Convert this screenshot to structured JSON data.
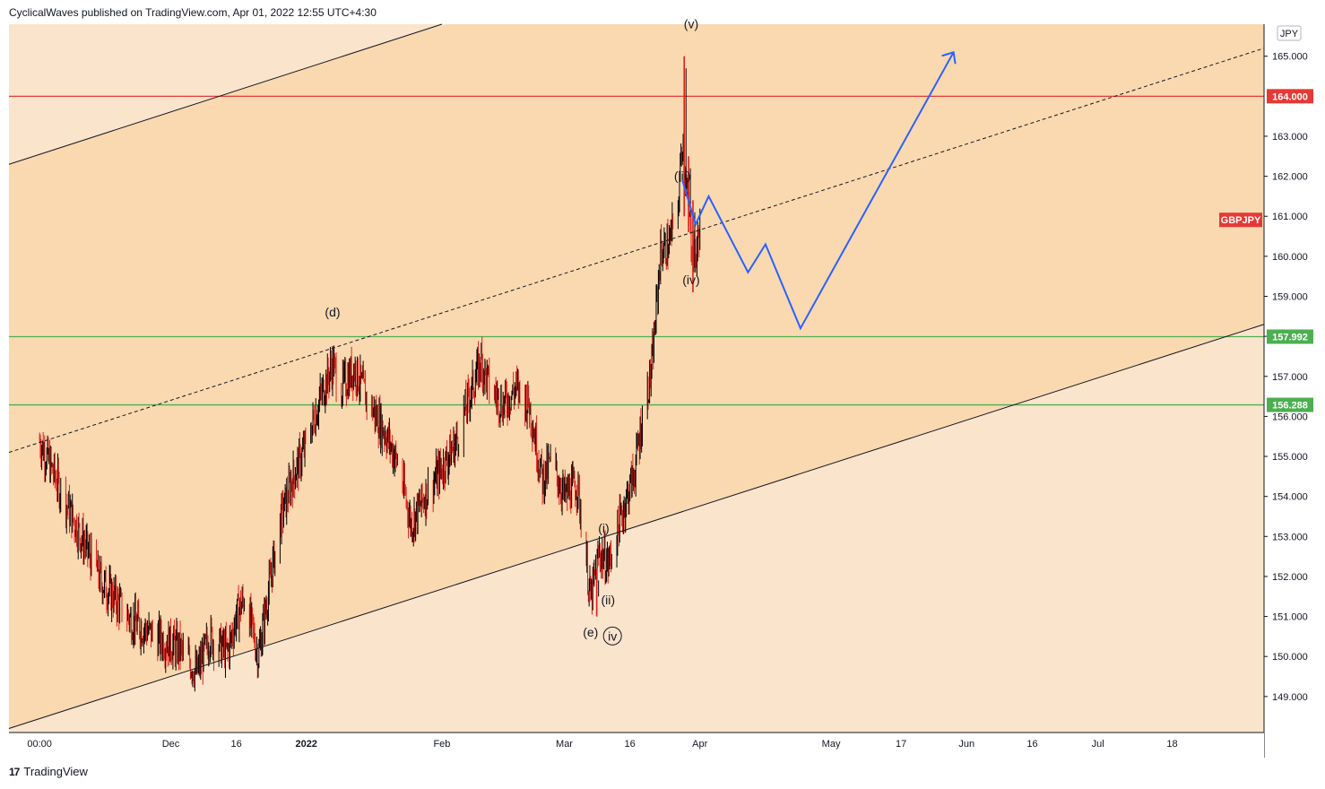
{
  "header": {
    "published": "CyclicalWaves published on TradingView.com, Apr 01, 2022 12:55 UTC+4:30"
  },
  "footer": {
    "brand": "TradingView",
    "logo_glyph": "17"
  },
  "chart_data": {
    "type": "candlestick",
    "symbol": "GBPJPY",
    "currency": "JPY",
    "colors": {
      "up": "#000000",
      "down": "#e0201b",
      "band": "#fad9b0",
      "outer": "#fbe4cc",
      "resistance": "#e53935",
      "support": "#4caf50",
      "projection": "#2962ff"
    },
    "ylim": [
      148.1,
      165.8
    ],
    "y_ticks": [
      "149.000",
      "150.000",
      "151.000",
      "152.000",
      "153.000",
      "154.000",
      "155.000",
      "156.000",
      "157.000",
      "158.000",
      "159.000",
      "160.000",
      "161.000",
      "162.000",
      "163.000",
      "165.000"
    ],
    "x_labels": [
      "00:00",
      "Dec",
      "16",
      "2022",
      "Feb",
      "Mar",
      "16",
      "Apr",
      "May",
      "17",
      "Jun",
      "16",
      "Jul",
      "18"
    ],
    "price_levels": [
      {
        "label": "164.000",
        "value": 164.0,
        "color": "#e53935"
      },
      {
        "label": "157.992",
        "value": 157.992,
        "color": "#4caf50"
      },
      {
        "label": "156.288",
        "value": 156.288,
        "color": "#4caf50"
      }
    ],
    "symbol_tag": {
      "label": "GBPJPY",
      "value": 161.0
    },
    "wave_labels": [
      {
        "text": "(d)",
        "date": "2022-01-07",
        "price": 158.5
      },
      {
        "text": "(v)",
        "date": "2022-03-30",
        "price": 165.7
      },
      {
        "text": "(iii)",
        "date": "2022-03-28",
        "price": 161.9
      },
      {
        "text": "(iv)",
        "date": "2022-03-30",
        "price": 159.3
      },
      {
        "text": "(i)",
        "date": "2022-03-10",
        "price": 153.1
      },
      {
        "text": "(ii)",
        "date": "2022-03-11",
        "price": 151.3
      },
      {
        "text": "(e)",
        "date": "2022-03-07",
        "price": 150.5
      },
      {
        "text": "iv",
        "date": "2022-03-12",
        "price": 150.4,
        "circled": true
      }
    ],
    "anchors": [
      {
        "date": "2021-11-01",
        "price": 155.4
      },
      {
        "date": "2021-11-08",
        "price": 153.6
      },
      {
        "date": "2021-11-15",
        "price": 151.9
      },
      {
        "date": "2021-11-22",
        "price": 150.9
      },
      {
        "date": "2021-11-29",
        "price": 150.4
      },
      {
        "date": "2021-12-03",
        "price": 150.2
      },
      {
        "date": "2021-12-07",
        "price": 149.6
      },
      {
        "date": "2021-12-10",
        "price": 150.5
      },
      {
        "date": "2021-12-14",
        "price": 150.1
      },
      {
        "date": "2021-12-16",
        "price": 151.0
      },
      {
        "date": "2021-12-18",
        "price": 151.5
      },
      {
        "date": "2021-12-21",
        "price": 150.0
      },
      {
        "date": "2021-12-23",
        "price": 151.4
      },
      {
        "date": "2021-12-26",
        "price": 153.4
      },
      {
        "date": "2021-12-29",
        "price": 154.5
      },
      {
        "date": "2022-01-01",
        "price": 155.3
      },
      {
        "date": "2022-01-04",
        "price": 156.4
      },
      {
        "date": "2022-01-07",
        "price": 157.3
      },
      {
        "date": "2022-01-09",
        "price": 156.7
      },
      {
        "date": "2022-01-12",
        "price": 157.2
      },
      {
        "date": "2022-01-15",
        "price": 156.4
      },
      {
        "date": "2022-01-19",
        "price": 155.6
      },
      {
        "date": "2022-01-22",
        "price": 154.8
      },
      {
        "date": "2022-01-25",
        "price": 153.3
      },
      {
        "date": "2022-01-28",
        "price": 154.0
      },
      {
        "date": "2022-02-01",
        "price": 154.7
      },
      {
        "date": "2022-02-04",
        "price": 155.3
      },
      {
        "date": "2022-02-07",
        "price": 156.4
      },
      {
        "date": "2022-02-10",
        "price": 157.4
      },
      {
        "date": "2022-02-12",
        "price": 156.7
      },
      {
        "date": "2022-02-15",
        "price": 156.3
      },
      {
        "date": "2022-02-18",
        "price": 156.7
      },
      {
        "date": "2022-02-21",
        "price": 156.3
      },
      {
        "date": "2022-02-24",
        "price": 154.4
      },
      {
        "date": "2022-02-26",
        "price": 154.9
      },
      {
        "date": "2022-03-01",
        "price": 154.0
      },
      {
        "date": "2022-03-04",
        "price": 154.3
      },
      {
        "date": "2022-03-07",
        "price": 151.4
      },
      {
        "date": "2022-03-09",
        "price": 152.6
      },
      {
        "date": "2022-03-11",
        "price": 152.3
      },
      {
        "date": "2022-03-14",
        "price": 153.5
      },
      {
        "date": "2022-03-17",
        "price": 154.6
      },
      {
        "date": "2022-03-19",
        "price": 156.1
      },
      {
        "date": "2022-03-21",
        "price": 157.2
      },
      {
        "date": "2022-03-23",
        "price": 160.1
      },
      {
        "date": "2022-03-25",
        "price": 160.3
      },
      {
        "date": "2022-03-27",
        "price": 161.3
      },
      {
        "date": "2022-03-28",
        "price": 163.0
      },
      {
        "date": "2022-03-29",
        "price": 161.6
      },
      {
        "date": "2022-03-30",
        "price": 160.4
      },
      {
        "date": "2022-03-31",
        "price": 159.9
      },
      {
        "date": "2022-04-01",
        "price": 160.8
      }
    ],
    "spikes": [
      {
        "date": "2022-03-28",
        "high": 165.0,
        "low": 161.0
      },
      {
        "date": "2022-03-29",
        "high": 162.5,
        "low": 160.6
      },
      {
        "date": "2022-03-30",
        "high": 161.4,
        "low": 159.1
      },
      {
        "date": "2022-03-08",
        "high": 152.2,
        "low": 151.0
      }
    ],
    "projection_path": [
      {
        "date": "2022-03-28",
        "price": 161.9
      },
      {
        "date": "2022-03-31",
        "price": 160.8
      },
      {
        "date": "2022-04-03",
        "price": 161.5
      },
      {
        "date": "2022-04-12",
        "price": 159.6
      },
      {
        "date": "2022-04-16",
        "price": 160.3
      },
      {
        "date": "2022-04-24",
        "price": 158.2
      },
      {
        "date": "2022-05-29",
        "price": 165.1
      }
    ],
    "channel_lines": [
      {
        "style": "solid",
        "from": {
          "date": "2021-10-25",
          "price": 162.3
        },
        "to": {
          "date": "2022-02-01",
          "price": 165.8
        }
      },
      {
        "style": "solid",
        "from": {
          "date": "2021-10-25",
          "price": 148.2
        },
        "to": {
          "date": "2022-08-08",
          "price": 158.3
        }
      },
      {
        "style": "dashed",
        "from": {
          "date": "2021-10-25",
          "price": 155.1
        },
        "to": {
          "date": "2022-08-08",
          "price": 165.2
        }
      }
    ]
  }
}
